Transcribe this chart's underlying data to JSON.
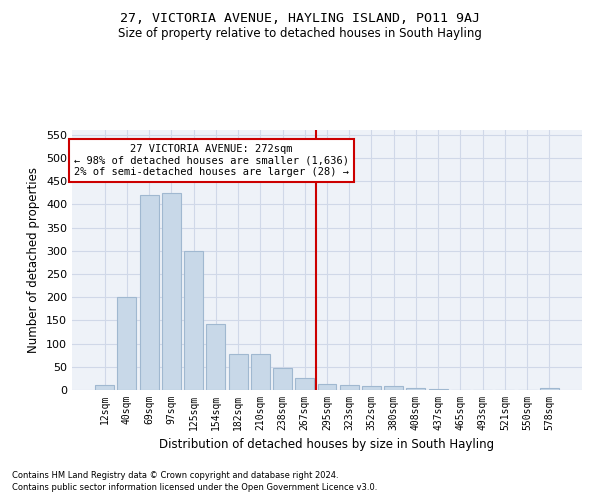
{
  "title": "27, VICTORIA AVENUE, HAYLING ISLAND, PO11 9AJ",
  "subtitle": "Size of property relative to detached houses in South Hayling",
  "xlabel": "Distribution of detached houses by size in South Hayling",
  "ylabel": "Number of detached properties",
  "footnote1": "Contains HM Land Registry data © Crown copyright and database right 2024.",
  "footnote2": "Contains public sector information licensed under the Open Government Licence v3.0.",
  "bar_labels": [
    "12sqm",
    "40sqm",
    "69sqm",
    "97sqm",
    "125sqm",
    "154sqm",
    "182sqm",
    "210sqm",
    "238sqm",
    "267sqm",
    "295sqm",
    "323sqm",
    "352sqm",
    "380sqm",
    "408sqm",
    "437sqm",
    "465sqm",
    "493sqm",
    "521sqm",
    "550sqm",
    "578sqm"
  ],
  "bar_values": [
    10,
    200,
    420,
    425,
    300,
    143,
    78,
    78,
    48,
    25,
    13,
    10,
    8,
    8,
    5,
    2,
    0,
    0,
    0,
    0,
    5
  ],
  "bar_color": "#c8d8e8",
  "bar_edgecolor": "#a0b8d0",
  "grid_color": "#d0d8e8",
  "bg_color": "#eef2f8",
  "property_line_x": 9.5,
  "annotation_title": "27 VICTORIA AVENUE: 272sqm",
  "annotation_line1": "← 98% of detached houses are smaller (1,636)",
  "annotation_line2": "2% of semi-detached houses are larger (28) →",
  "annotation_box_color": "#ffffff",
  "annotation_border_color": "#cc0000",
  "vline_color": "#cc0000",
  "ylim": [
    0,
    560
  ],
  "yticks": [
    0,
    50,
    100,
    150,
    200,
    250,
    300,
    350,
    400,
    450,
    500,
    550
  ]
}
